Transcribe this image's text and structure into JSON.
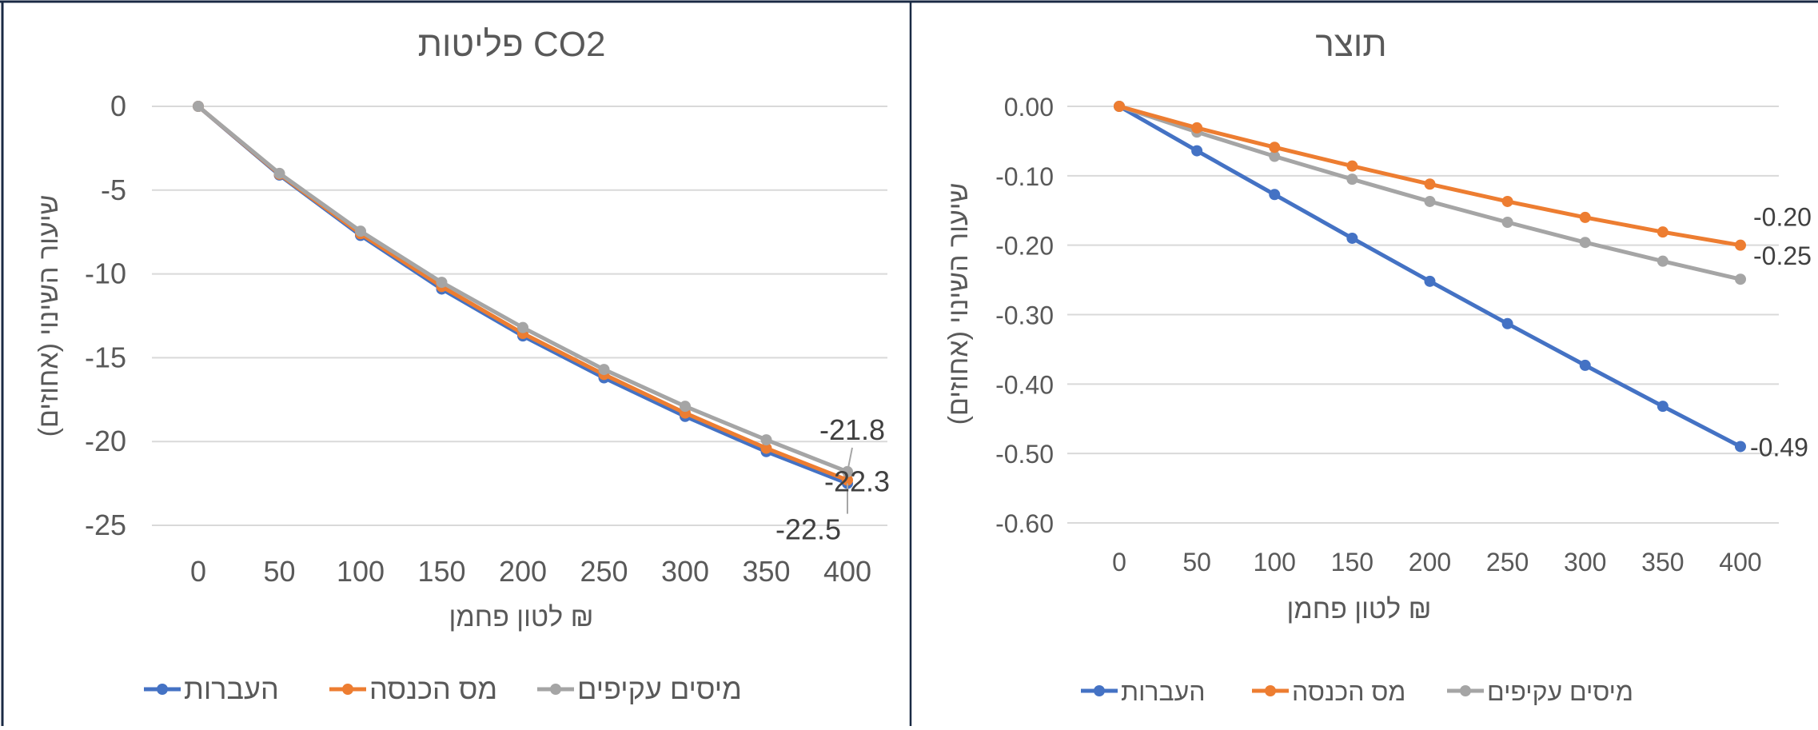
{
  "charts": [
    {
      "id": "co2",
      "title": "פליטות CO2",
      "xlabel": "₪ לטון פחמן",
      "ylabel": "שיעור השינוי (אחוזים)"
    },
    {
      "id": "output",
      "title": "תוצר",
      "xlabel": "₪ לטון פחמן",
      "ylabel": "שיעור השינוי (אחוזים)"
    }
  ],
  "chart_data": [
    {
      "type": "line",
      "title": "פליטות CO2",
      "xlabel": "₪ לטון פחמן",
      "ylabel": "שיעור השינוי (אחוזים)",
      "x": [
        0,
        50,
        100,
        150,
        200,
        250,
        300,
        350,
        400
      ],
      "ylim": [
        -25,
        0
      ],
      "yticks": [
        0,
        -5,
        -10,
        -15,
        -20,
        -25
      ],
      "ytick_labels": [
        "0",
        "-5",
        "-10",
        "-15",
        "-20",
        "-25"
      ],
      "grid": true,
      "legend": "bottom",
      "series": [
        {
          "name": "העברות",
          "color": "#4472C4",
          "values": [
            0,
            -4.1,
            -7.7,
            -10.9,
            -13.7,
            -16.2,
            -18.5,
            -20.6,
            -22.5
          ],
          "end_label": "-22.5"
        },
        {
          "name": "מס הכנסה",
          "color": "#ED7D31",
          "values": [
            0,
            -4.05,
            -7.6,
            -10.75,
            -13.55,
            -16.0,
            -18.3,
            -20.4,
            -22.3
          ],
          "end_label": "-22.3"
        },
        {
          "name": "מיסים עקיפים",
          "color": "#A5A5A5",
          "values": [
            0,
            -4.0,
            -7.45,
            -10.5,
            -13.2,
            -15.7,
            -17.9,
            -19.9,
            -21.8
          ],
          "end_label": "-21.8"
        }
      ]
    },
    {
      "type": "line",
      "title": "תוצר",
      "xlabel": "₪ לטון פחמן",
      "ylabel": "שיעור השינוי (אחוזים)",
      "x": [
        0,
        50,
        100,
        150,
        200,
        250,
        300,
        350,
        400
      ],
      "ylim": [
        -0.6,
        0
      ],
      "yticks": [
        0,
        -0.1,
        -0.2,
        -0.3,
        -0.4,
        -0.5,
        -0.6
      ],
      "ytick_labels": [
        "0.00",
        "-0.10",
        "-0.20",
        "-0.30",
        "-0.40",
        "-0.50",
        "-0.60"
      ],
      "grid": true,
      "legend": "bottom",
      "series": [
        {
          "name": "העברות",
          "color": "#4472C4",
          "values": [
            0,
            -0.064,
            -0.127,
            -0.19,
            -0.252,
            -0.313,
            -0.373,
            -0.432,
            -0.49
          ],
          "end_label": "-0.49"
        },
        {
          "name": "מס הכנסה",
          "color": "#ED7D31",
          "values": [
            0,
            -0.031,
            -0.059,
            -0.086,
            -0.112,
            -0.137,
            -0.16,
            -0.181,
            -0.2
          ],
          "end_label": "-0.20"
        },
        {
          "name": "מיסים עקיפים",
          "color": "#A5A5A5",
          "values": [
            0,
            -0.037,
            -0.072,
            -0.105,
            -0.137,
            -0.167,
            -0.196,
            -0.223,
            -0.249
          ],
          "end_label": "-0.25"
        }
      ]
    }
  ]
}
